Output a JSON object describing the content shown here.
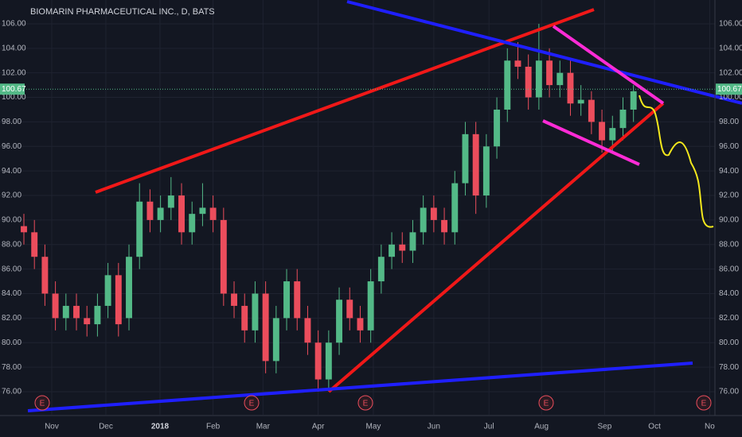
{
  "chart_data": {
    "type": "candlestick",
    "title": "BIOMARIN PHARMACEUTICAL INC., D, BATS",
    "x": [
      0,
      4,
      8,
      12,
      16,
      20,
      24,
      28,
      32,
      36,
      40,
      44,
      48,
      52,
      56,
      60,
      64,
      68,
      72,
      76,
      80,
      84,
      88,
      92,
      96,
      100,
      104,
      108,
      112,
      116,
      120,
      124,
      128,
      132,
      136,
      140,
      144,
      148,
      152,
      156,
      160,
      164,
      168,
      172,
      176,
      180,
      184,
      188,
      192,
      196,
      200,
      204,
      208,
      212,
      216,
      220,
      224,
      228,
      232
    ],
    "open": [
      89.5,
      89,
      87,
      84,
      82,
      83,
      82,
      81.5,
      83,
      85.5,
      82,
      87,
      91.5,
      90,
      91,
      92,
      89,
      90.5,
      91,
      90,
      84,
      83,
      81,
      84,
      78.5,
      82,
      85,
      82,
      80,
      77,
      80,
      83.5,
      82,
      81,
      85,
      87,
      88,
      87.5,
      89,
      91,
      90,
      89,
      93,
      97,
      92,
      96,
      99,
      103,
      102.5,
      100,
      103,
      101,
      102,
      99.5,
      99.8,
      98,
      96.5,
      97.5,
      99
    ],
    "high": [
      90.5,
      90,
      88,
      85,
      84,
      84,
      83,
      84,
      86.5,
      86.5,
      88,
      93,
      92.5,
      92,
      93.5,
      93,
      91.5,
      93,
      92,
      91,
      85,
      84,
      85,
      85,
      83,
      86,
      86,
      83,
      81,
      81,
      84.5,
      84.5,
      83,
      86,
      88,
      89,
      89,
      90,
      92,
      92,
      91,
      94,
      98,
      98,
      97,
      100,
      104,
      104.5,
      103.5,
      106,
      104,
      103,
      103,
      101,
      100.5,
      99,
      98.5,
      100,
      101
    ],
    "low": [
      88,
      86,
      83,
      81,
      81,
      81,
      80.5,
      80.5,
      82,
      80.5,
      81,
      86,
      89,
      89,
      90,
      88,
      88,
      89.5,
      89,
      83,
      82,
      80,
      80,
      77.5,
      77.5,
      81,
      81,
      79,
      76,
      76,
      79,
      81,
      80,
      80,
      84,
      86,
      86.5,
      86.5,
      88,
      89,
      88,
      88,
      92,
      90.5,
      91,
      95,
      98,
      101.5,
      99,
      99,
      100,
      100,
      98.5,
      98.5,
      97,
      95.5,
      95.5,
      96.5,
      98
    ],
    "close": [
      89,
      87,
      84,
      82,
      83,
      82,
      81.5,
      83,
      85.5,
      81.5,
      87,
      91.5,
      90,
      91,
      92,
      89,
      90.5,
      91,
      90,
      84,
      83,
      81,
      84,
      78.5,
      82,
      85,
      82,
      80,
      77,
      80,
      83.5,
      82,
      81,
      85,
      87,
      88,
      87.5,
      89,
      91,
      90,
      89,
      93,
      97,
      92,
      96,
      99,
      103,
      102.5,
      100,
      103,
      101,
      102,
      99.5,
      99.8,
      98,
      96.5,
      97.5,
      99,
      100.5
    ],
    "up_color": "#53b987",
    "down_color": "#eb4d5c",
    "last_price": 100.67,
    "earnings_markers": [
      "E",
      "E",
      "E",
      "E",
      "E"
    ],
    "xlim": [
      0,
      263
    ],
    "xticks": [
      {
        "value": 10.6,
        "label": "Nov"
      },
      {
        "value": 31.2,
        "label": "Dec"
      },
      {
        "value": 51.8,
        "label": "2018"
      },
      {
        "value": 72,
        "label": "Feb"
      },
      {
        "value": 91,
        "label": "Mar"
      },
      {
        "value": 112,
        "label": "Apr"
      },
      {
        "value": 133,
        "label": "May"
      },
      {
        "value": 156,
        "label": "Jun"
      },
      {
        "value": 177,
        "label": "Jul"
      },
      {
        "value": 197,
        "label": "Aug"
      },
      {
        "value": 221,
        "label": "Sep"
      },
      {
        "value": 240,
        "label": "Oct"
      },
      {
        "value": 261,
        "label": "No"
      }
    ],
    "ylim": [
      74.12,
      107.94
    ],
    "yticks": [
      {
        "value": 76,
        "label": "76.00"
      },
      {
        "value": 78,
        "label": "78.00"
      },
      {
        "value": 80,
        "label": "80.00"
      },
      {
        "value": 82,
        "label": "82.00"
      },
      {
        "value": 84,
        "label": "84.00"
      },
      {
        "value": 86,
        "label": "86.00"
      },
      {
        "value": 88,
        "label": "88.00"
      },
      {
        "value": 90,
        "label": "90.00"
      },
      {
        "value": 92,
        "label": "92.00"
      },
      {
        "value": 94,
        "label": "94.00"
      },
      {
        "value": 96,
        "label": "96.00"
      },
      {
        "value": 98,
        "label": "98.00"
      },
      {
        "value": 100,
        "label": "100.00"
      },
      {
        "value": 102,
        "label": "102.00"
      },
      {
        "value": 104,
        "label": "104.00"
      },
      {
        "value": 106,
        "label": "106.00"
      }
    ],
    "grid": true
  }
}
